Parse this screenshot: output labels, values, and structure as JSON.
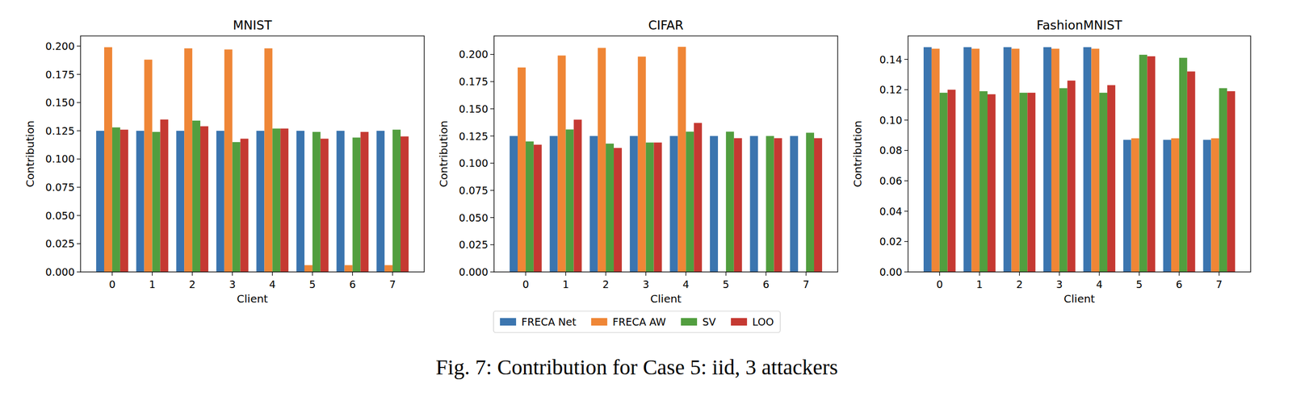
{
  "chart_data": [
    {
      "type": "bar",
      "title": "MNIST",
      "x_label": "Client",
      "y_label": "Contribution",
      "categories": [
        "0",
        "1",
        "2",
        "3",
        "4",
        "5",
        "6",
        "7"
      ],
      "series": [
        {
          "name": "FRECA Net",
          "color": "#3b75af",
          "values": [
            0.125,
            0.125,
            0.125,
            0.125,
            0.125,
            0.125,
            0.125,
            0.125
          ]
        },
        {
          "name": "FRECA AW",
          "color": "#ef8636",
          "values": [
            0.199,
            0.188,
            0.198,
            0.197,
            0.198,
            0.006,
            0.006,
            0.006
          ]
        },
        {
          "name": "SV",
          "color": "#529e3f",
          "values": [
            0.128,
            0.124,
            0.134,
            0.115,
            0.127,
            0.124,
            0.119,
            0.126
          ]
        },
        {
          "name": "LOO",
          "color": "#c53932",
          "values": [
            0.126,
            0.135,
            0.129,
            0.118,
            0.127,
            0.118,
            0.124,
            0.12
          ]
        }
      ],
      "ylim": [
        0,
        0.209
      ],
      "yticks": [
        {
          "value": 0,
          "label": "0.000"
        },
        {
          "value": 0.025,
          "label": "0.025"
        },
        {
          "value": 0.05,
          "label": "0.050"
        },
        {
          "value": 0.075,
          "label": "0.075"
        },
        {
          "value": 0.1,
          "label": "0.100"
        },
        {
          "value": 0.125,
          "label": "0.125"
        },
        {
          "value": 0.15,
          "label": "0.150"
        },
        {
          "value": 0.175,
          "label": "0.175"
        },
        {
          "value": 0.2,
          "label": "0.200"
        }
      ],
      "grid": false
    },
    {
      "type": "bar",
      "title": "CIFAR",
      "x_label": "Client",
      "y_label": "Contribution",
      "categories": [
        "0",
        "1",
        "2",
        "3",
        "4",
        "5",
        "6",
        "7"
      ],
      "series": [
        {
          "name": "FRECA Net",
          "color": "#3b75af",
          "values": [
            0.125,
            0.125,
            0.125,
            0.125,
            0.125,
            0.125,
            0.125,
            0.125
          ]
        },
        {
          "name": "FRECA AW",
          "color": "#ef8636",
          "values": [
            0.188,
            0.199,
            0.206,
            0.198,
            0.207,
            0,
            0,
            0
          ]
        },
        {
          "name": "SV",
          "color": "#529e3f",
          "values": [
            0.12,
            0.131,
            0.118,
            0.119,
            0.129,
            0.129,
            0.125,
            0.128
          ]
        },
        {
          "name": "LOO",
          "color": "#c53932",
          "values": [
            0.117,
            0.14,
            0.114,
            0.119,
            0.137,
            0.123,
            0.123,
            0.123
          ]
        }
      ],
      "ylim": [
        0,
        0.217
      ],
      "yticks": [
        {
          "value": 0,
          "label": "0.000"
        },
        {
          "value": 0.025,
          "label": "0.025"
        },
        {
          "value": 0.05,
          "label": "0.050"
        },
        {
          "value": 0.075,
          "label": "0.075"
        },
        {
          "value": 0.1,
          "label": "0.100"
        },
        {
          "value": 0.125,
          "label": "0.125"
        },
        {
          "value": 0.15,
          "label": "0.150"
        },
        {
          "value": 0.175,
          "label": "0.175"
        },
        {
          "value": 0.2,
          "label": "0.200"
        }
      ],
      "grid": false,
      "legend": "bottom"
    },
    {
      "type": "bar",
      "title": "FashionMNIST",
      "x_label": "Client",
      "y_label": "Contribution",
      "categories": [
        "0",
        "1",
        "2",
        "3",
        "4",
        "5",
        "6",
        "7"
      ],
      "series": [
        {
          "name": "FRECA Net",
          "color": "#3b75af",
          "values": [
            0.148,
            0.148,
            0.148,
            0.148,
            0.148,
            0.087,
            0.087,
            0.087
          ]
        },
        {
          "name": "FRECA AW",
          "color": "#ef8636",
          "values": [
            0.147,
            0.147,
            0.147,
            0.147,
            0.147,
            0.088,
            0.088,
            0.088
          ]
        },
        {
          "name": "SV",
          "color": "#529e3f",
          "values": [
            0.118,
            0.119,
            0.118,
            0.121,
            0.118,
            0.143,
            0.141,
            0.121
          ]
        },
        {
          "name": "LOO",
          "color": "#c53932",
          "values": [
            0.12,
            0.117,
            0.118,
            0.126,
            0.123,
            0.142,
            0.132,
            0.119
          ]
        }
      ],
      "ylim": [
        0,
        0.1554
      ],
      "yticks": [
        {
          "value": 0,
          "label": "0.00"
        },
        {
          "value": 0.02,
          "label": "0.02"
        },
        {
          "value": 0.04,
          "label": "0.04"
        },
        {
          "value": 0.06,
          "label": "0.06"
        },
        {
          "value": 0.08,
          "label": "0.08"
        },
        {
          "value": 0.1,
          "label": "0.10"
        },
        {
          "value": 0.12,
          "label": "0.12"
        },
        {
          "value": 0.14,
          "label": "0.14"
        }
      ],
      "grid": false
    }
  ],
  "caption": "Fig. 7: Contribution for Case 5: iid, 3 attackers"
}
